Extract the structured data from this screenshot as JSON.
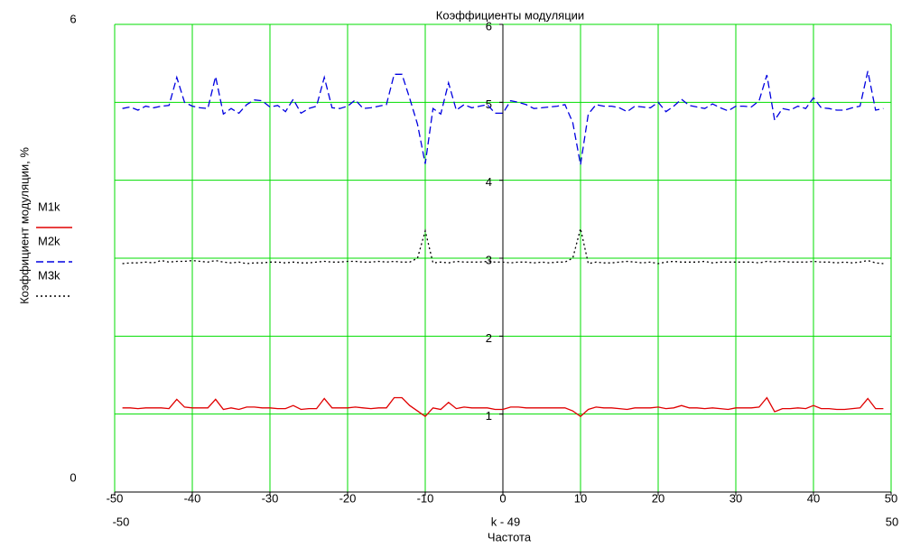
{
  "chart_data": {
    "type": "line",
    "title": "Коэффициенты модуляции",
    "x_expression": "k - 49",
    "x_label": "Частота",
    "y_label": "Коэффициент модуляции, %",
    "xlim": [
      -50,
      50
    ],
    "ylim": [
      0,
      6
    ],
    "xticks": [
      -50,
      -40,
      -30,
      -20,
      -10,
      0,
      10,
      20,
      30,
      40,
      50
    ],
    "yticks": [
      1,
      2,
      3,
      4,
      5,
      6
    ],
    "grid": true,
    "grid_color": "#00dd00",
    "x": [
      -49,
      -48,
      -47,
      -46,
      -45,
      -44,
      -43,
      -42,
      -41,
      -40,
      -39,
      -38,
      -37,
      -36,
      -35,
      -34,
      -33,
      -32,
      -31,
      -30,
      -29,
      -28,
      -27,
      -26,
      -25,
      -24,
      -23,
      -22,
      -21,
      -20,
      -19,
      -18,
      -17,
      -16,
      -15,
      -14,
      -13,
      -12,
      -11,
      -10,
      -9,
      -8,
      -7,
      -6,
      -5,
      -4,
      -3,
      -2,
      -1,
      0,
      1,
      2,
      3,
      4,
      5,
      6,
      7,
      8,
      9,
      10,
      11,
      12,
      13,
      14,
      15,
      16,
      17,
      18,
      19,
      20,
      21,
      22,
      23,
      24,
      25,
      26,
      27,
      28,
      29,
      30,
      31,
      32,
      33,
      34,
      35,
      36,
      37,
      38,
      39,
      40,
      41,
      42,
      43,
      44,
      45,
      46,
      47,
      48,
      49
    ],
    "series": [
      {
        "name": "M1k",
        "color": "#e00000",
        "dash": "solid",
        "values": [
          1.08,
          1.08,
          1.07,
          1.08,
          1.08,
          1.08,
          1.07,
          1.19,
          1.09,
          1.08,
          1.08,
          1.08,
          1.19,
          1.06,
          1.08,
          1.06,
          1.09,
          1.09,
          1.08,
          1.08,
          1.07,
          1.07,
          1.11,
          1.06,
          1.07,
          1.07,
          1.2,
          1.08,
          1.08,
          1.08,
          1.09,
          1.08,
          1.07,
          1.08,
          1.08,
          1.21,
          1.21,
          1.11,
          1.04,
          0.97,
          1.08,
          1.06,
          1.15,
          1.07,
          1.09,
          1.08,
          1.08,
          1.08,
          1.06,
          1.06,
          1.09,
          1.09,
          1.08,
          1.08,
          1.08,
          1.08,
          1.08,
          1.08,
          1.04,
          0.97,
          1.06,
          1.09,
          1.08,
          1.08,
          1.07,
          1.06,
          1.08,
          1.08,
          1.08,
          1.09,
          1.07,
          1.08,
          1.11,
          1.08,
          1.08,
          1.07,
          1.08,
          1.07,
          1.06,
          1.08,
          1.08,
          1.08,
          1.09,
          1.21,
          1.03,
          1.07,
          1.07,
          1.08,
          1.07,
          1.11,
          1.07,
          1.07,
          1.06,
          1.06,
          1.07,
          1.08,
          1.2,
          1.07,
          1.07
        ]
      },
      {
        "name": "M2k",
        "color": "#0000e0",
        "dash": "dashed",
        "values": [
          4.92,
          4.94,
          4.9,
          4.95,
          4.93,
          4.95,
          4.96,
          5.32,
          5.0,
          4.95,
          4.93,
          4.92,
          5.33,
          4.85,
          4.92,
          4.86,
          4.97,
          5.03,
          5.02,
          4.94,
          4.96,
          4.88,
          5.04,
          4.86,
          4.92,
          4.95,
          5.32,
          4.93,
          4.92,
          4.95,
          5.03,
          4.92,
          4.93,
          4.95,
          4.97,
          5.36,
          5.36,
          5.05,
          4.72,
          4.21,
          4.92,
          4.85,
          5.25,
          4.9,
          4.97,
          4.93,
          4.95,
          4.97,
          4.86,
          4.86,
          5.02,
          5.0,
          4.97,
          4.92,
          4.93,
          4.94,
          4.95,
          4.97,
          4.74,
          4.2,
          4.85,
          4.97,
          4.95,
          4.95,
          4.93,
          4.88,
          4.95,
          4.94,
          4.93,
          5.0,
          4.88,
          4.95,
          5.04,
          4.96,
          4.94,
          4.92,
          4.98,
          4.93,
          4.89,
          4.95,
          4.95,
          4.94,
          5.02,
          5.35,
          4.77,
          4.92,
          4.9,
          4.95,
          4.92,
          5.06,
          4.93,
          4.92,
          4.9,
          4.9,
          4.93,
          4.95,
          5.4,
          4.9,
          4.92
        ]
      },
      {
        "name": "M3k",
        "color": "#000000",
        "dash": "dotted",
        "values": [
          2.93,
          2.94,
          2.94,
          2.95,
          2.94,
          2.97,
          2.95,
          2.96,
          2.96,
          2.97,
          2.96,
          2.95,
          2.97,
          2.95,
          2.94,
          2.95,
          2.93,
          2.94,
          2.94,
          2.95,
          2.95,
          2.94,
          2.95,
          2.94,
          2.94,
          2.95,
          2.96,
          2.95,
          2.95,
          2.96,
          2.96,
          2.95,
          2.95,
          2.96,
          2.95,
          2.96,
          2.95,
          2.95,
          3.0,
          3.35,
          2.94,
          2.95,
          2.94,
          2.96,
          2.95,
          2.95,
          2.95,
          2.96,
          2.95,
          2.95,
          2.94,
          2.95,
          2.95,
          2.94,
          2.95,
          2.94,
          2.95,
          2.95,
          3.0,
          3.38,
          2.93,
          2.95,
          2.94,
          2.94,
          2.95,
          2.96,
          2.95,
          2.94,
          2.95,
          2.93,
          2.95,
          2.96,
          2.95,
          2.95,
          2.95,
          2.96,
          2.94,
          2.95,
          2.95,
          2.95,
          2.95,
          2.95,
          2.94,
          2.96,
          2.95,
          2.96,
          2.95,
          2.95,
          2.95,
          2.96,
          2.95,
          2.95,
          2.94,
          2.95,
          2.94,
          2.95,
          2.97,
          2.94,
          2.93
        ]
      }
    ]
  }
}
